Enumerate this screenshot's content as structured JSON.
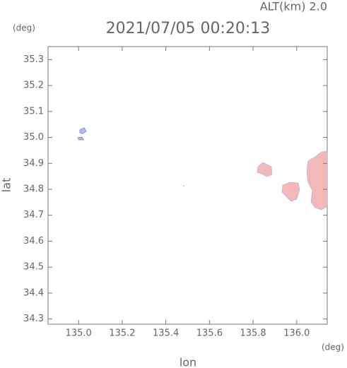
{
  "chart_data": {
    "type": "map",
    "title": "2021/07/05 00:20:13",
    "altitude_label": "ALT(km) 2.0",
    "y_unit": "(deg)",
    "x_unit": "(deg)",
    "xlabel": "lon",
    "ylabel": "lat",
    "xlim": [
      134.86,
      136.14
    ],
    "ylim": [
      34.28,
      35.35
    ],
    "xticks": [
      {
        "value": 135,
        "label": "135.0"
      },
      135.2,
      135.4,
      135.6,
      135.8,
      {
        "value": 136,
        "label": "136.0"
      }
    ],
    "yticks": [
      34.3,
      34.4,
      34.5,
      34.6,
      34.7,
      34.8,
      34.9,
      {
        "value": 35,
        "label": "35.0"
      },
      35.1,
      35.2,
      35.3
    ]
  }
}
